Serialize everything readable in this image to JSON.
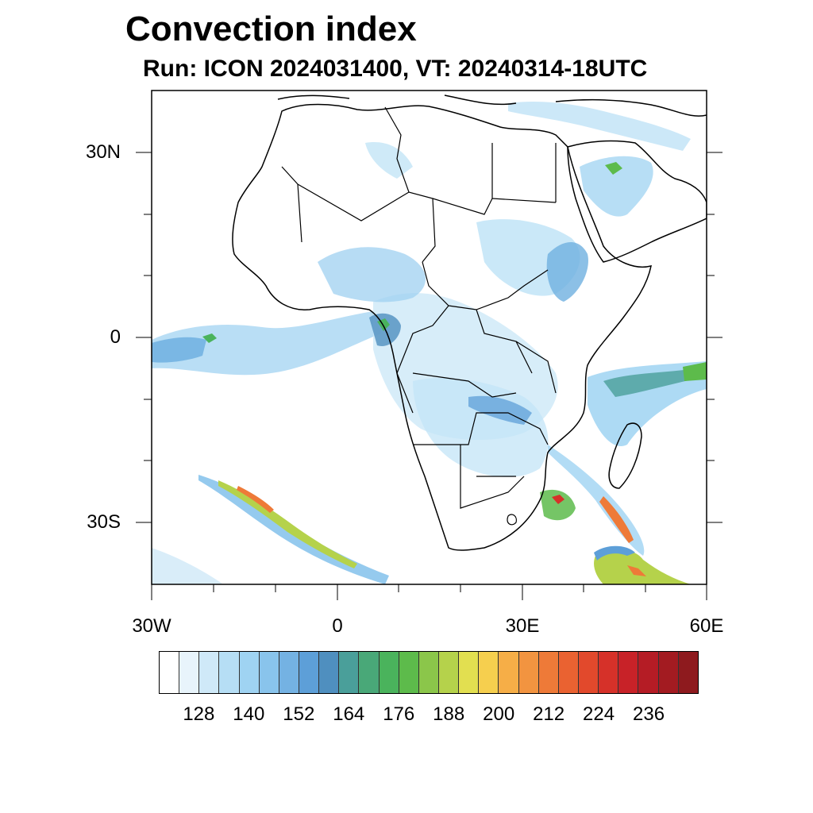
{
  "title": "Convection index",
  "subtitle": "Run: ICON 2024031400,  VT: 20240314-18UTC",
  "axes": {
    "y_labels": [
      "30N",
      "0",
      "30S"
    ],
    "x_labels": [
      "30W",
      "0",
      "30E",
      "60E"
    ]
  },
  "colorbar": {
    "labels": [
      "128",
      "140",
      "152",
      "164",
      "176",
      "188",
      "200",
      "212",
      "224",
      "236"
    ],
    "colors": [
      "#ffffff",
      "#e8f4fb",
      "#cfe9f8",
      "#b6def5",
      "#9fd3f2",
      "#89c4ec",
      "#74b2e3",
      "#5d9fd8",
      "#4f8fbf",
      "#4a9f9a",
      "#49a878",
      "#4ab35c",
      "#5dbb4b",
      "#8bc64a",
      "#b5d24b",
      "#e2df50",
      "#f6cf4e",
      "#f6ae47",
      "#f29440",
      "#ee7a38",
      "#ea6231",
      "#e2492c",
      "#d63129",
      "#c82228",
      "#b51c25",
      "#a31b21",
      "#8e1a1e"
    ]
  },
  "colors": {
    "coast": "#000000",
    "frame": "#000000"
  }
}
